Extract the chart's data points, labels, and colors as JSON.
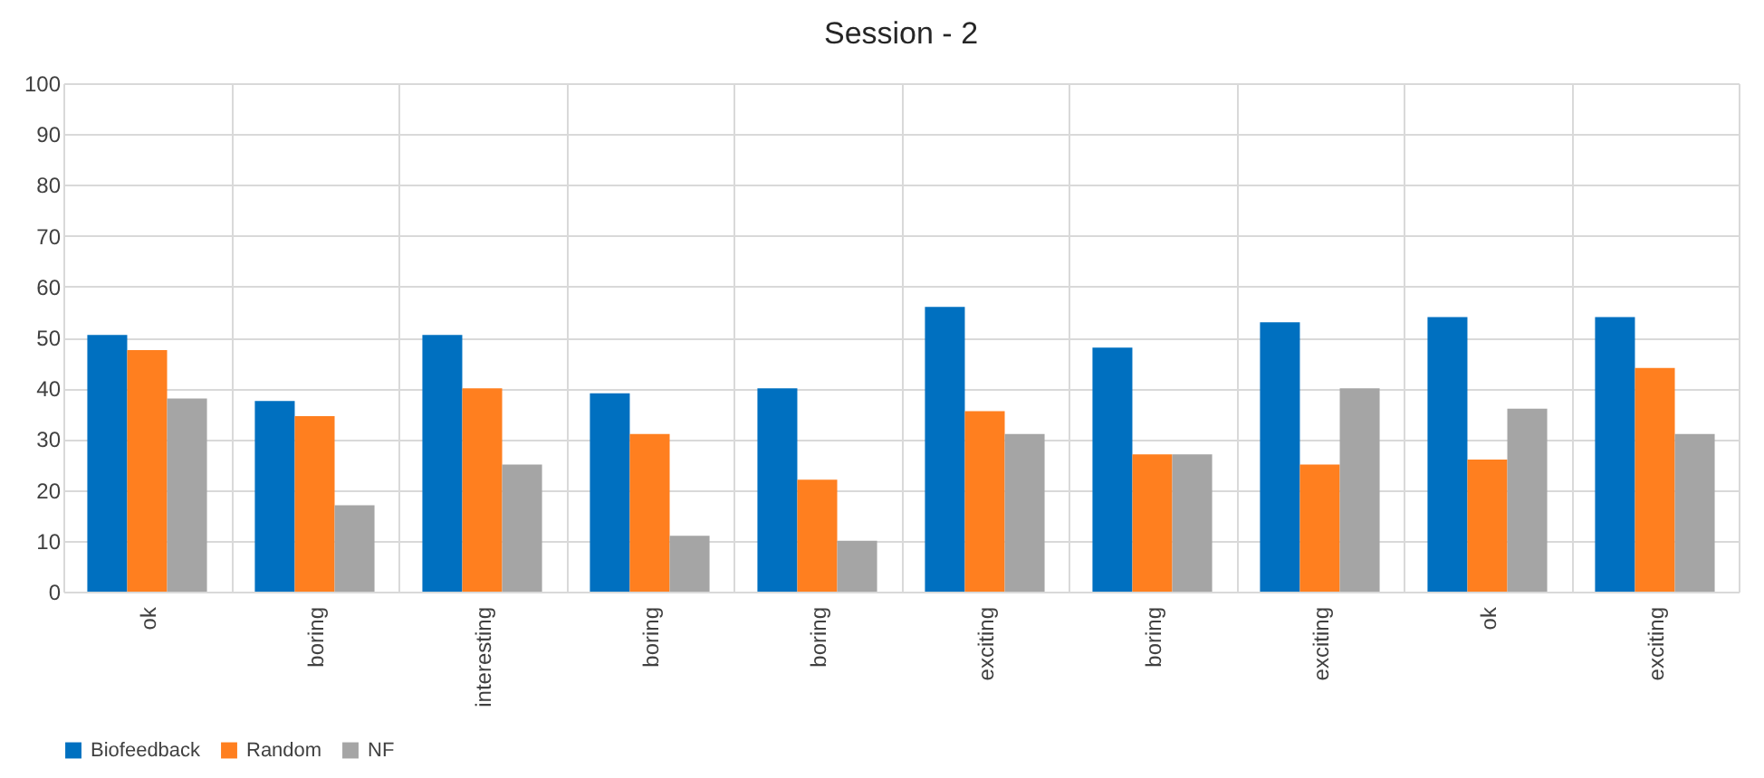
{
  "chart_data": {
    "type": "bar",
    "title": "Session - 2",
    "categories": [
      "ok",
      "boring",
      "interesting",
      "boring",
      "boring",
      "exciting",
      "boring",
      "exciting",
      "ok",
      "exciting"
    ],
    "series": [
      {
        "name": "Biofeedback",
        "color": "#0070c0",
        "values": [
          50.5,
          37.5,
          50.5,
          39,
          40,
          56,
          48,
          53,
          54,
          54
        ]
      },
      {
        "name": "Random",
        "color": "#ff7f1f",
        "values": [
          47.5,
          34.5,
          40,
          31,
          22,
          35.5,
          27,
          25,
          26,
          44
        ]
      },
      {
        "name": "NF",
        "color": "#a5a5a5",
        "values": [
          38,
          17,
          25,
          11,
          10,
          31,
          27,
          40,
          36,
          31
        ]
      }
    ],
    "ylim": [
      0,
      100
    ],
    "yticks": [
      0,
      10,
      20,
      30,
      40,
      50,
      60,
      70,
      80,
      90,
      100
    ],
    "grid": true,
    "legend": "bottom"
  }
}
